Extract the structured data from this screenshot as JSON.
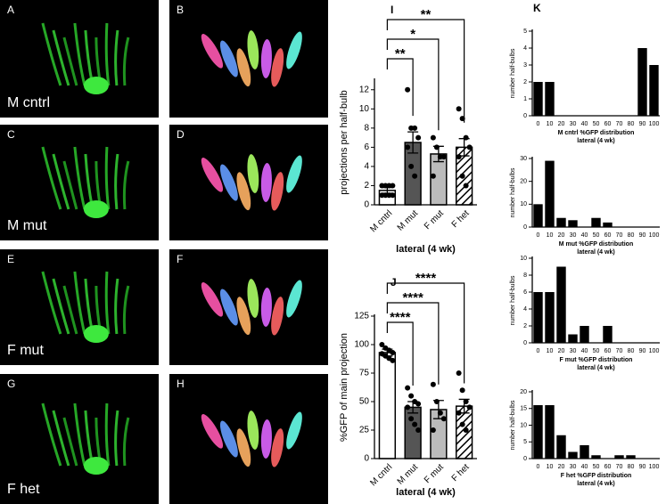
{
  "image_panels": [
    {
      "letter": "A",
      "label": "M cntrl"
    },
    {
      "letter": "B"
    },
    {
      "letter": "C"
    },
    {
      "letter": "D"
    },
    {
      "letter": "E",
      "label": "F mut"
    },
    {
      "letter": "F"
    },
    {
      "letter": "G",
      "label": "F het"
    },
    {
      "letter": "H"
    }
  ],
  "image_mut_label": "M mut",
  "chart_data": [
    {
      "type": "bar",
      "panel": "I",
      "categories": [
        "M cntrl",
        "M mut",
        "F mut",
        "F het"
      ],
      "values": [
        1.5,
        6.5,
        5.3,
        6.0
      ],
      "errors": [
        0.3,
        1.1,
        0.8,
        0.9
      ],
      "points": [
        [
          1,
          1,
          1,
          1,
          2,
          2,
          2,
          2
        ],
        [
          12,
          8,
          8,
          7,
          6,
          4,
          3
        ],
        [
          7,
          6,
          5,
          5,
          3
        ],
        [
          10,
          9,
          7,
          6,
          5,
          3,
          2
        ]
      ],
      "colors": [
        "#ffffff",
        "#555555",
        "#bbbbbb",
        "#ffffff"
      ],
      "hatch": [
        false,
        false,
        false,
        true
      ],
      "significance": [
        "**",
        "*",
        "**"
      ],
      "ylabel": "projections per half-bulb",
      "xlabel": [
        "lateral (4 wk)"
      ],
      "ylim": [
        0,
        13
      ],
      "yticks": [
        0,
        2,
        4,
        6,
        8,
        10,
        12
      ]
    },
    {
      "type": "bar",
      "panel": "J",
      "categories": [
        "M cntrl",
        "M mut",
        "F mut",
        "F het"
      ],
      "values": [
        93,
        45,
        43,
        46
      ],
      "errors": [
        3,
        5,
        8,
        6
      ],
      "points": [
        [
          100,
          97,
          95,
          93,
          92,
          90,
          88,
          86
        ],
        [
          62,
          55,
          50,
          48,
          45,
          35,
          30,
          25
        ],
        [
          65,
          50,
          40,
          35,
          25
        ],
        [
          75,
          60,
          50,
          45,
          40,
          30,
          25
        ]
      ],
      "colors": [
        "#ffffff",
        "#555555",
        "#bbbbbb",
        "#ffffff"
      ],
      "hatch": [
        false,
        false,
        false,
        true
      ],
      "significance": [
        "****",
        "****",
        "****"
      ],
      "ylabel": "%GFP of main projection",
      "xlabel": [
        "lateral (4 wk)"
      ],
      "ylim": [
        0,
        125
      ],
      "yticks": [
        0,
        25,
        50,
        75,
        100,
        125
      ]
    },
    {
      "type": "bar",
      "panel": "K",
      "categories": [
        "0",
        "10",
        "20",
        "30",
        "40",
        "50",
        "60",
        "70",
        "80",
        "90",
        "100"
      ],
      "values": [
        2,
        2,
        0,
        0,
        0,
        0,
        0,
        0,
        0,
        4,
        3
      ],
      "color": "#000000",
      "ylabel": "number half-bulbs",
      "xlabel": [
        "M cntrl %GFP distribution",
        "lateral (4 wk)"
      ],
      "ylim": [
        0,
        5
      ],
      "yticks": [
        0,
        1,
        2,
        3,
        4,
        5
      ]
    },
    {
      "type": "bar",
      "categories": [
        "0",
        "10",
        "20",
        "30",
        "40",
        "50",
        "60",
        "70",
        "80",
        "90",
        "100"
      ],
      "values": [
        10,
        29,
        4,
        3,
        0,
        4,
        2,
        0,
        0,
        0,
        0
      ],
      "color": "#000000",
      "ylabel": "number half-bulbs",
      "xlabel": [
        "M mut %GFP distribution",
        "lateral (4 wk)"
      ],
      "ylim": [
        0,
        30
      ],
      "yticks": [
        0,
        10,
        20,
        30
      ]
    },
    {
      "type": "bar",
      "categories": [
        "0",
        "10",
        "20",
        "30",
        "40",
        "50",
        "60",
        "70",
        "80",
        "90",
        "100"
      ],
      "values": [
        6,
        6,
        9,
        1,
        2,
        0,
        2,
        0,
        0,
        0,
        0
      ],
      "color": "#000000",
      "ylabel": "number half-bulbs",
      "xlabel": [
        "F mut %GFP distribution",
        "lateral (4 wk)"
      ],
      "ylim": [
        0,
        10
      ],
      "yticks": [
        0,
        2,
        4,
        6,
        8,
        10
      ]
    },
    {
      "type": "bar",
      "categories": [
        "0",
        "10",
        "20",
        "30",
        "40",
        "50",
        "60",
        "70",
        "80",
        "90",
        "100"
      ],
      "values": [
        16,
        16,
        7,
        2,
        4,
        1,
        0,
        1,
        1,
        0,
        0
      ],
      "color": "#000000",
      "ylabel": "number half-bulbs",
      "xlabel": [
        "F het %GFP distribution",
        "lateral (4 wk)"
      ],
      "ylim": [
        0,
        20
      ],
      "yticks": [
        0,
        5,
        10,
        15,
        20
      ]
    }
  ]
}
